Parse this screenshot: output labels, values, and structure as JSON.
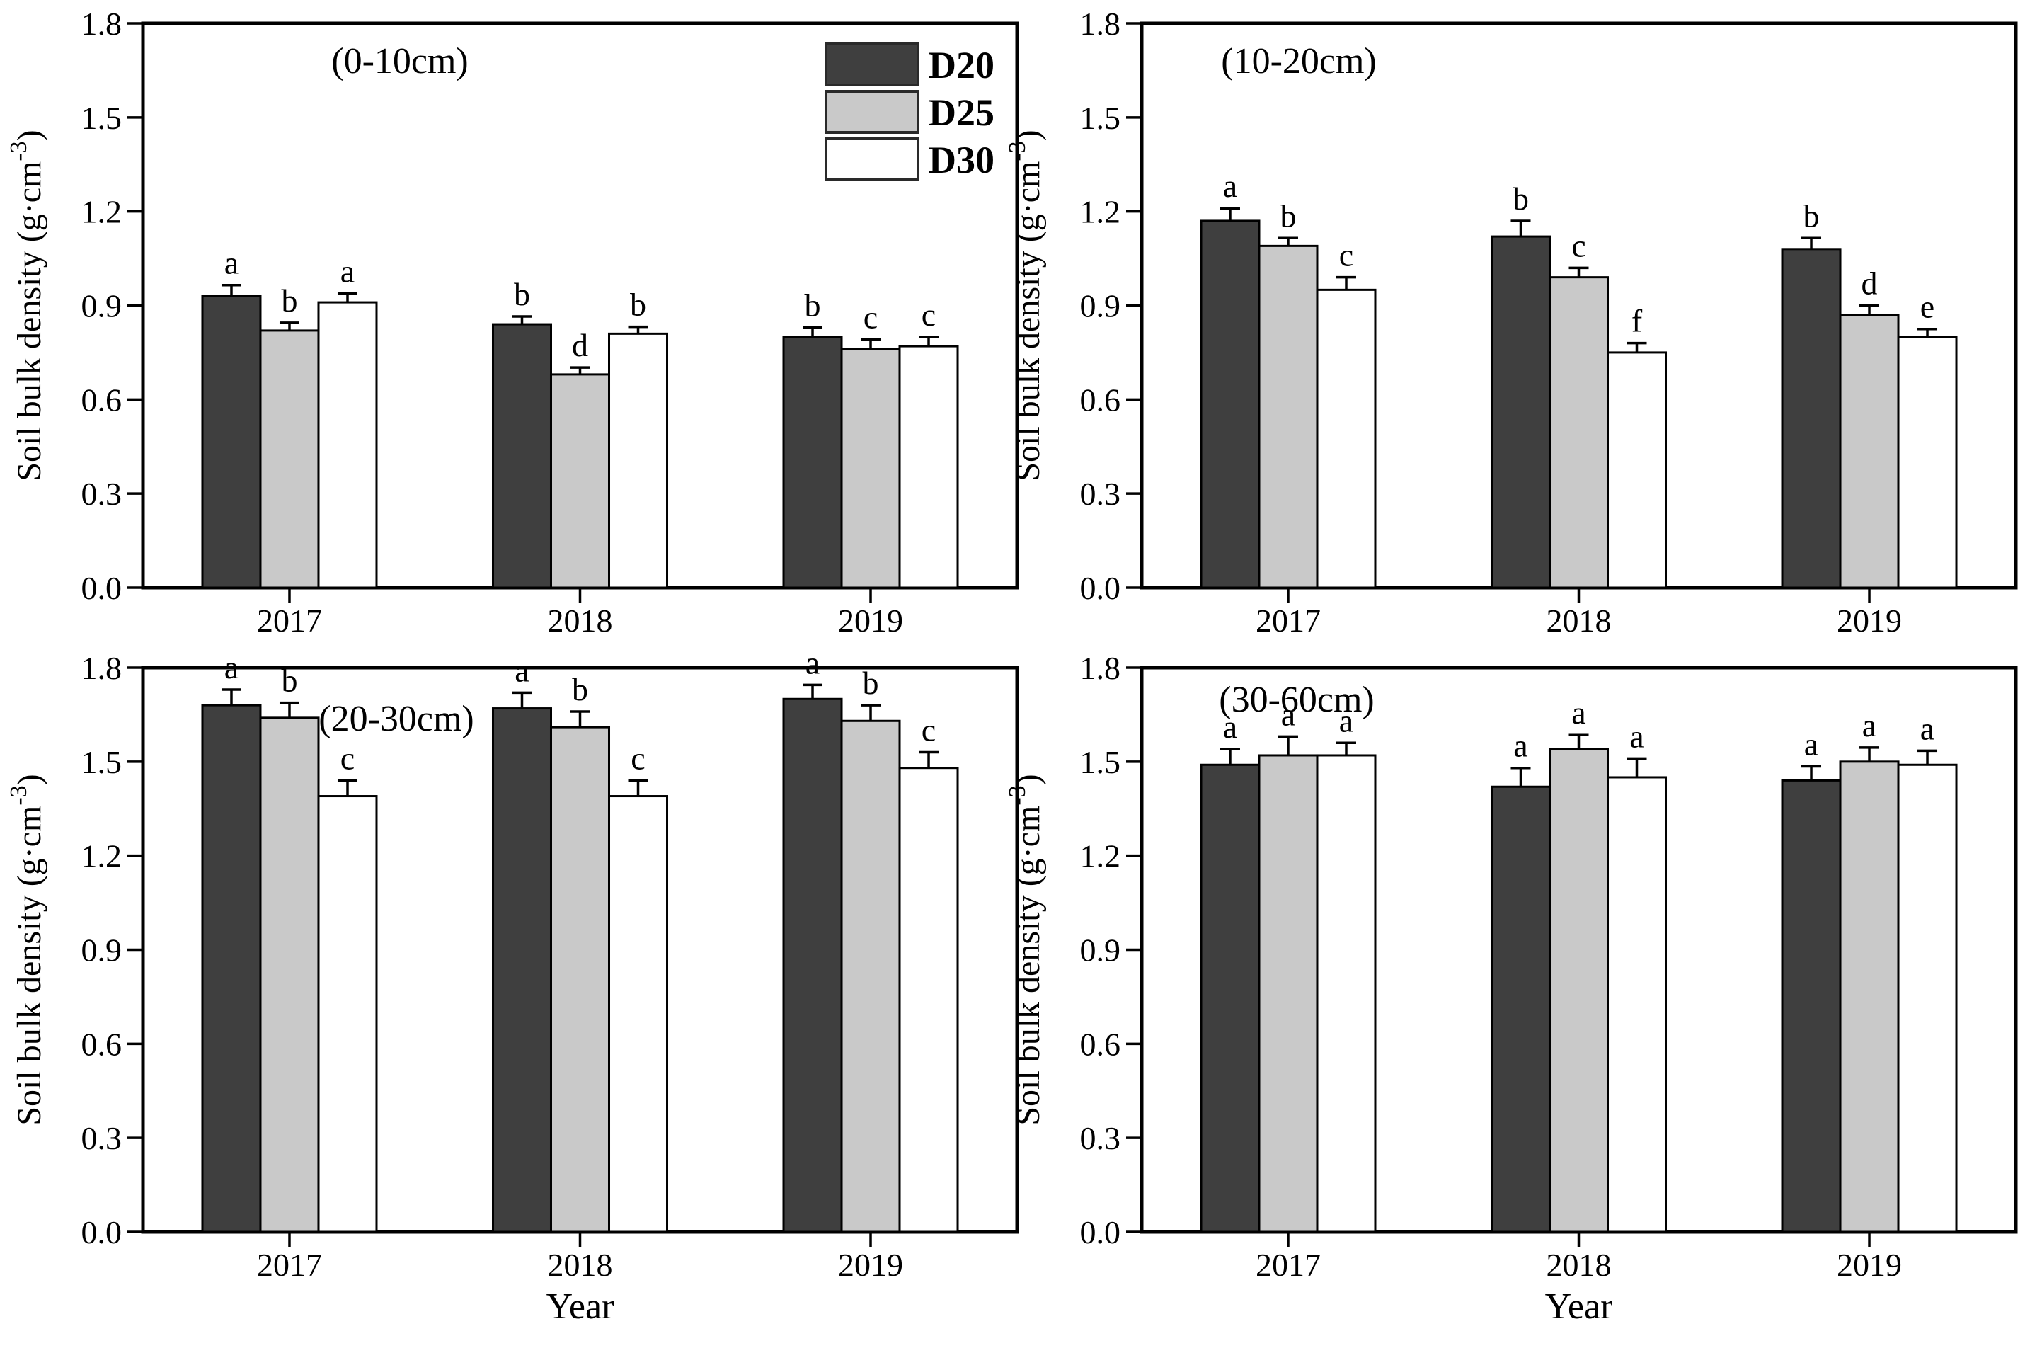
{
  "figure": {
    "x_axis_label": "Year",
    "y_axis_label": {
      "prefix": "Soil bulk density (g·cm",
      "sup": "-3",
      "suffix": ")"
    },
    "y_tick_labels": [
      "0.0",
      "0.3",
      "0.6",
      "0.9",
      "1.2",
      "1.5",
      "1.8"
    ],
    "legend": {
      "entries": [
        "D20",
        "D25",
        "D30"
      ]
    },
    "colors": {
      "D20": "#3f3f3f",
      "D25": "#c9c9c9",
      "D30": "#ffffff",
      "border": "#000000",
      "axis": "#000000"
    }
  },
  "chart_data": [
    {
      "type": "bar",
      "title": "(0-10cm)",
      "categories": [
        "2017",
        "2018",
        "2019"
      ],
      "ylim": [
        0,
        1.8
      ],
      "ylabel": "Soil bulk density (g·cm⁻³)",
      "xlabel": "",
      "series": [
        {
          "name": "D20",
          "values": [
            0.93,
            0.84,
            0.8
          ],
          "errors": [
            0.035,
            0.025,
            0.03
          ],
          "letters": [
            "a",
            "b",
            "b"
          ]
        },
        {
          "name": "D25",
          "values": [
            0.82,
            0.68,
            0.76
          ],
          "errors": [
            0.025,
            0.022,
            0.032
          ],
          "letters": [
            "b",
            "d",
            "c"
          ]
        },
        {
          "name": "D30",
          "values": [
            0.91,
            0.81,
            0.77
          ],
          "errors": [
            0.028,
            0.022,
            0.03
          ],
          "letters": [
            "a",
            "b",
            "c"
          ]
        }
      ]
    },
    {
      "type": "bar",
      "title": "(10-20cm)",
      "categories": [
        "2017",
        "2018",
        "2019"
      ],
      "ylim": [
        0,
        1.8
      ],
      "ylabel": "Soil bulk density (g·cm⁻³)",
      "xlabel": "",
      "series": [
        {
          "name": "D20",
          "values": [
            1.17,
            1.12,
            1.08
          ],
          "errors": [
            0.04,
            0.05,
            0.035
          ],
          "letters": [
            "a",
            "b",
            "b"
          ]
        },
        {
          "name": "D25",
          "values": [
            1.09,
            0.99,
            0.87
          ],
          "errors": [
            0.025,
            0.03,
            0.03
          ],
          "letters": [
            "b",
            "c",
            "d"
          ]
        },
        {
          "name": "D30",
          "values": [
            0.95,
            0.75,
            0.8
          ],
          "errors": [
            0.04,
            0.03,
            0.025
          ],
          "letters": [
            "c",
            "f",
            "e"
          ]
        }
      ]
    },
    {
      "type": "bar",
      "title": "(20-30cm)",
      "categories": [
        "2017",
        "2018",
        "2019"
      ],
      "ylim": [
        0,
        1.8
      ],
      "ylabel": "Soil bulk density (g·cm⁻³)",
      "xlabel": "Year",
      "series": [
        {
          "name": "D20",
          "values": [
            1.68,
            1.67,
            1.7
          ],
          "errors": [
            0.05,
            0.05,
            0.045
          ],
          "letters": [
            "a",
            "a",
            "a"
          ]
        },
        {
          "name": "D25",
          "values": [
            1.64,
            1.61,
            1.63
          ],
          "errors": [
            0.048,
            0.05,
            0.05
          ],
          "letters": [
            "b",
            "b",
            "b"
          ]
        },
        {
          "name": "D30",
          "values": [
            1.39,
            1.39,
            1.48
          ],
          "errors": [
            0.05,
            0.05,
            0.05
          ],
          "letters": [
            "c",
            "c",
            "c"
          ]
        }
      ]
    },
    {
      "type": "bar",
      "title": "(30-60cm)",
      "categories": [
        "2017",
        "2018",
        "2019"
      ],
      "ylim": [
        0,
        1.8
      ],
      "ylabel": "Soil bulk density (g·cm⁻³)",
      "xlabel": "Year",
      "series": [
        {
          "name": "D20",
          "values": [
            1.49,
            1.42,
            1.44
          ],
          "errors": [
            0.05,
            0.06,
            0.045
          ],
          "letters": [
            "a",
            "a",
            "a"
          ]
        },
        {
          "name": "D25",
          "values": [
            1.52,
            1.54,
            1.5
          ],
          "errors": [
            0.06,
            0.045,
            0.045
          ],
          "letters": [
            "a",
            "a",
            "a"
          ]
        },
        {
          "name": "D30",
          "values": [
            1.52,
            1.45,
            1.49
          ],
          "errors": [
            0.04,
            0.06,
            0.045
          ],
          "letters": [
            "a",
            "a",
            "a"
          ]
        }
      ]
    }
  ]
}
